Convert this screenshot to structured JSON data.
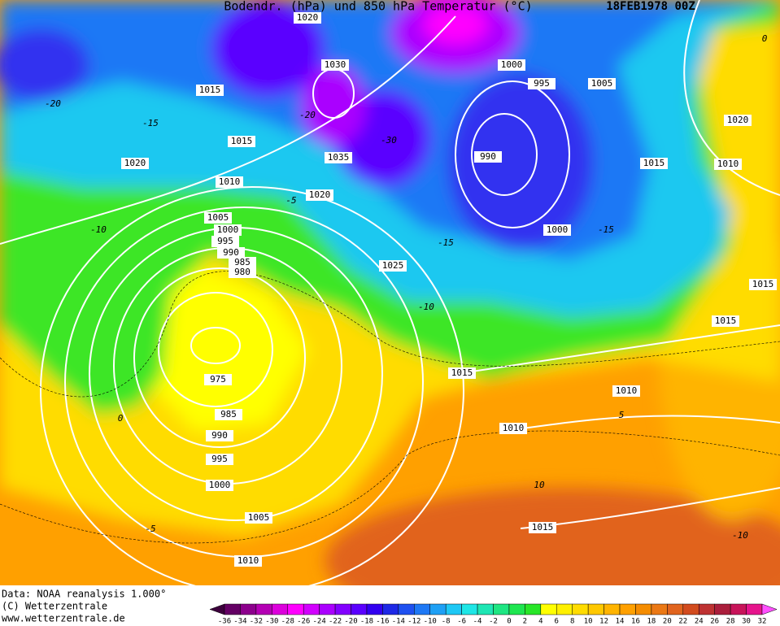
{
  "header": {
    "title": "Bodendr. (hPa) und 850 hPa Temperatur (°C)",
    "date": "18FEB1978 00Z"
  },
  "isobar_labels": [
    1020,
    1015,
    1030,
    1035,
    1015,
    1020,
    1010,
    1020,
    1005,
    1000,
    995,
    990,
    985,
    980,
    1025,
    1000,
    995,
    1005,
    990,
    1015,
    1020,
    1010,
    1000,
    1015,
    1015,
    1015,
    1010,
    1010,
    975,
    985,
    990,
    995,
    1000,
    1005,
    1010,
    1015
  ],
  "temperature_labels": [
    -20,
    -15,
    -10,
    -5,
    -20,
    -30,
    -15,
    -10,
    -15,
    0,
    -5,
    5,
    10,
    -10,
    0
  ],
  "footer": {
    "lines": [
      "Data: NOAA reanalysis 1.000°",
      "(C) Wetterzentrale",
      "www.wetterzentrale.de"
    ]
  },
  "legend": {
    "ticks": [
      -36,
      -34,
      -32,
      -30,
      -28,
      -26,
      -24,
      -22,
      -20,
      -18,
      -16,
      -14,
      -12,
      -10,
      -8,
      -6,
      -4,
      -2,
      0,
      2,
      4,
      6,
      8,
      10,
      12,
      14,
      16,
      18,
      20,
      22,
      24,
      26,
      28,
      30,
      32
    ],
    "colors": [
      "#3c003c",
      "#640064",
      "#8c008c",
      "#b400b4",
      "#dc00dc",
      "#ff00ff",
      "#d200ff",
      "#aa00ff",
      "#8200ff",
      "#5a00ff",
      "#3200f0",
      "#1e28e6",
      "#1e50f0",
      "#1e78f5",
      "#1ea0f5",
      "#1ec8f5",
      "#1ee6e6",
      "#1ee6b4",
      "#1ee682",
      "#1ee650",
      "#28e628",
      "#ffff00",
      "#fff000",
      "#ffdc00",
      "#ffc800",
      "#ffb400",
      "#ffa000",
      "#f58c00",
      "#eb7814",
      "#e1641e",
      "#d24b1e",
      "#be3232",
      "#aa1e3c",
      "#c8145a",
      "#e6148c",
      "#ff50ff"
    ]
  }
}
